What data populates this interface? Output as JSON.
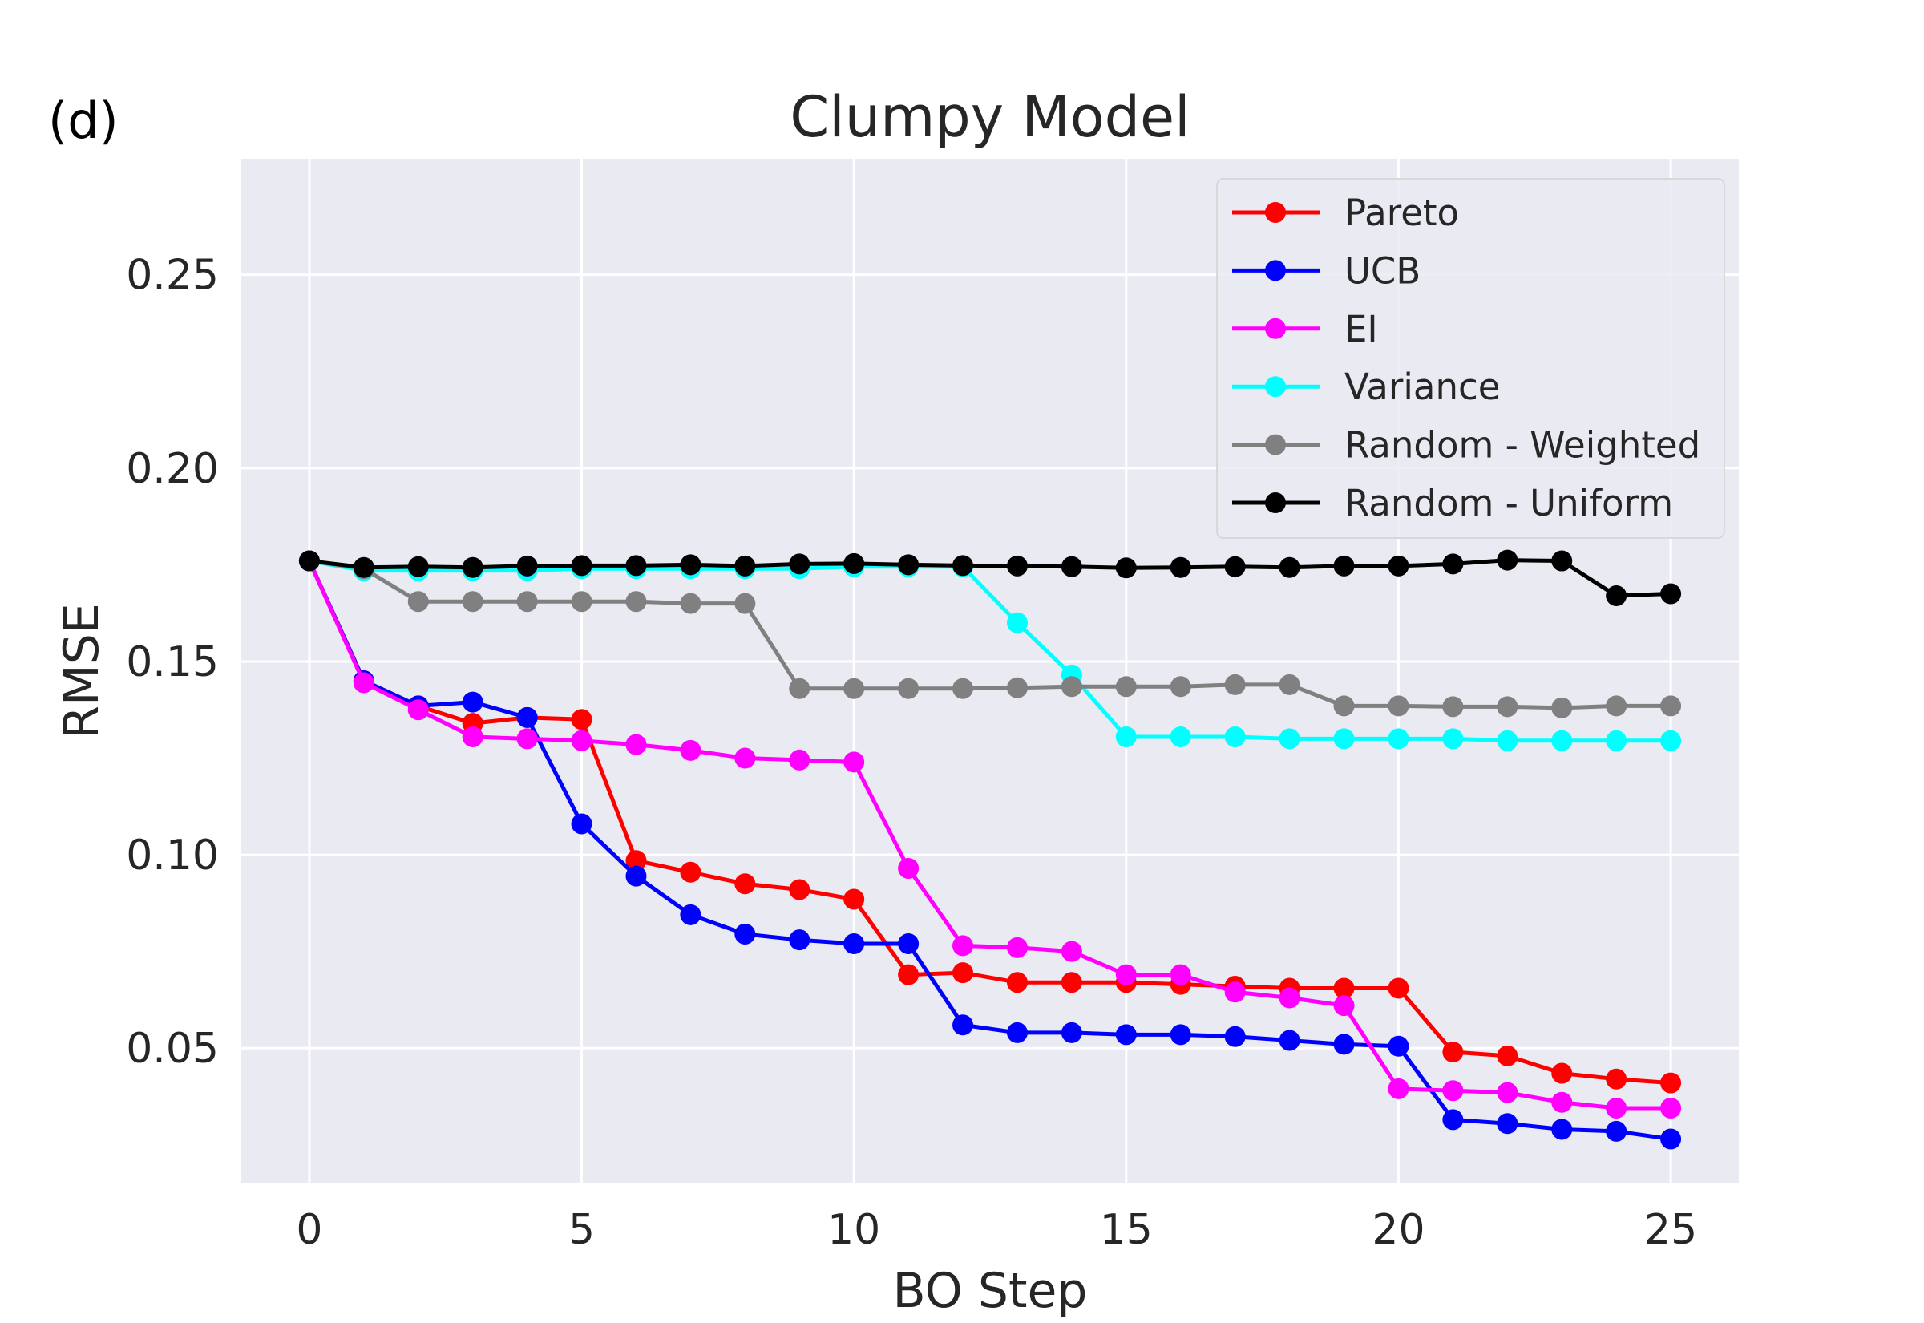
{
  "panel_label": "(d)",
  "chart_data": {
    "type": "line",
    "title": "Clumpy Model",
    "xlabel": "BO Step",
    "ylabel": "RMSE",
    "xlim": [
      -1.25,
      26.25
    ],
    "ylim": [
      0.015,
      0.28
    ],
    "x_ticks": [
      0,
      5,
      10,
      15,
      20,
      25
    ],
    "x_tick_labels": [
      "0",
      "5",
      "10",
      "15",
      "20",
      "25"
    ],
    "y_ticks": [
      0.05,
      0.1,
      0.15,
      0.2,
      0.25
    ],
    "y_tick_labels": [
      "0.05",
      "0.10",
      "0.15",
      "0.20",
      "0.25"
    ],
    "grid": true,
    "background": "#eaeaf2",
    "legend_position": "top-right",
    "x": [
      0,
      1,
      2,
      3,
      4,
      5,
      6,
      7,
      8,
      9,
      10,
      11,
      12,
      13,
      14,
      15,
      16,
      17,
      18,
      19,
      20,
      21,
      22,
      23,
      24,
      25
    ],
    "series": [
      {
        "name": "Pareto",
        "color": "#ff0000",
        "values": [
          0.176,
          0.145,
          0.1385,
          0.134,
          0.1355,
          0.135,
          0.0985,
          0.0955,
          0.0925,
          0.091,
          0.0885,
          0.069,
          0.0695,
          0.067,
          0.067,
          0.067,
          0.0665,
          0.066,
          0.0655,
          0.0655,
          0.0655,
          0.049,
          0.048,
          0.0435,
          0.042,
          0.041
        ]
      },
      {
        "name": "UCB",
        "color": "#0000ff",
        "values": [
          0.176,
          0.145,
          0.1385,
          0.1395,
          0.1355,
          0.108,
          0.0945,
          0.0845,
          0.0795,
          0.078,
          0.077,
          0.077,
          0.056,
          0.054,
          0.054,
          0.0535,
          0.0535,
          0.053,
          0.052,
          0.051,
          0.0505,
          0.0315,
          0.0305,
          0.029,
          0.0285,
          0.0265
        ]
      },
      {
        "name": "EI",
        "color": "#ff00ff",
        "values": [
          0.176,
          0.1445,
          0.1375,
          0.1305,
          0.13,
          0.1295,
          0.1285,
          0.127,
          0.125,
          0.1245,
          0.124,
          0.0965,
          0.0765,
          0.076,
          0.075,
          0.069,
          0.069,
          0.0645,
          0.063,
          0.061,
          0.0395,
          0.039,
          0.0385,
          0.036,
          0.0345,
          0.0345
        ]
      },
      {
        "name": "Variance",
        "color": "#00ffff",
        "values": [
          0.176,
          0.1735,
          0.1735,
          0.1735,
          0.1735,
          0.174,
          0.174,
          0.174,
          0.174,
          0.174,
          0.1745,
          0.1745,
          0.1745,
          0.16,
          0.1465,
          0.1305,
          0.1305,
          0.1305,
          0.13,
          0.13,
          0.13,
          0.13,
          0.1295,
          0.1295,
          0.1295,
          0.1295
        ]
      },
      {
        "name": "Random - Weighted",
        "color": "#808080",
        "values": [
          0.176,
          0.174,
          0.1655,
          0.1655,
          0.1655,
          0.1655,
          0.1655,
          0.165,
          0.165,
          0.143,
          0.143,
          0.143,
          0.143,
          0.1432,
          0.1435,
          0.1435,
          0.1435,
          0.144,
          0.144,
          0.1385,
          0.1385,
          0.1383,
          0.1383,
          0.138,
          0.1385,
          0.1385
        ]
      },
      {
        "name": "Random - Uniform",
        "color": "#000000",
        "values": [
          0.176,
          0.1743,
          0.1745,
          0.1743,
          0.1747,
          0.1748,
          0.1748,
          0.175,
          0.1747,
          0.1752,
          0.1753,
          0.175,
          0.1748,
          0.1747,
          0.1745,
          0.1742,
          0.1743,
          0.1745,
          0.1743,
          0.1747,
          0.1747,
          0.1752,
          0.1762,
          0.176,
          0.167,
          0.1675
        ]
      }
    ]
  }
}
